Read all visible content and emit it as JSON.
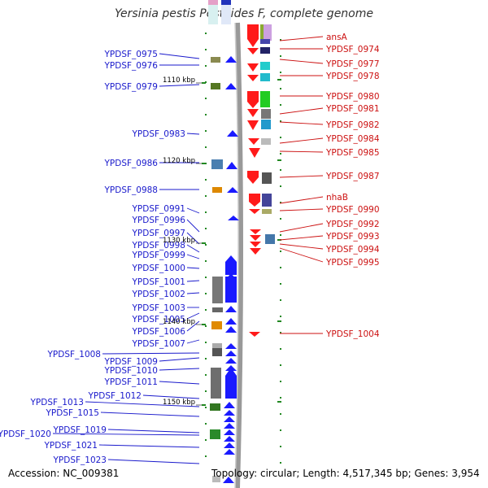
{
  "title": "Yersinia pestis Pestoides F, complete genome",
  "accession": "Accession: NC_009381",
  "summary": "Topology: circular; Length: 4,517,345 bp; Genes: 3,954",
  "colors": {
    "left_label": "#1a1acc",
    "right_label": "#cc1111",
    "forward_gene": "#1a1aff",
    "reverse_gene": "#ff1a1a",
    "backbone": "#999999",
    "tick": "#228822"
  },
  "ruler_labels": [
    "1110 kbp",
    "1120 kbp",
    "1130 kbp",
    "1140 kbp",
    "1150 kbp"
  ],
  "left_genes": [
    "YPDSF_0975",
    "YPDSF_0976",
    "YPDSF_0979",
    "YPDSF_0983",
    "YPDSF_0986",
    "YPDSF_0988",
    "YPDSF_0991",
    "YPDSF_0996",
    "YPDSF_0997",
    "YPDSF_0998",
    "YPDSF_0999",
    "YPDSF_1000",
    "YPDSF_1001",
    "YPDSF_1002",
    "YPDSF_1003",
    "YPDSF_1005",
    "YPDSF_1006",
    "YPDSF_1007",
    "YPDSF_1008",
    "YPDSF_1009",
    "YPDSF_1010",
    "YPDSF_1011",
    "YPDSF_1012",
    "YPDSF_1013",
    "YPDSF_1015",
    "YPDSF_1019",
    "YPDSF_1020",
    "YPDSF_1021",
    "YPDSF_1023"
  ],
  "right_genes": [
    "ansA",
    "YPDSF_0974",
    "YPDSF_0977",
    "YPDSF_0978",
    "YPDSF_0980",
    "YPDSF_0981",
    "YPDSF_0982",
    "YPDSF_0984",
    "YPDSF_0985",
    "YPDSF_0987",
    "nhaB",
    "YPDSF_0990",
    "YPDSF_0992",
    "YPDSF_0993",
    "YPDSF_0994",
    "YPDSF_0995",
    "YPDSF_1004"
  ]
}
